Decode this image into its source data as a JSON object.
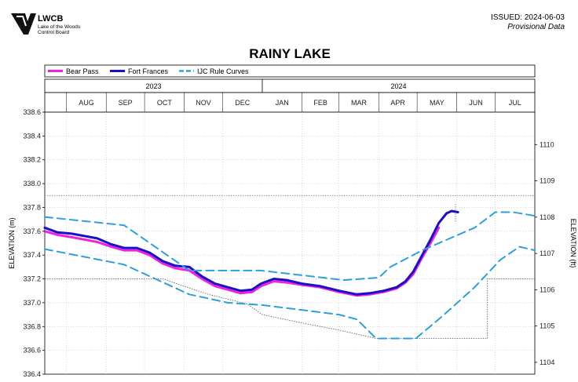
{
  "header": {
    "logo_mark": "LWCB",
    "org_name": "Lake of the Woods",
    "org_name_2": "Control Board",
    "issued": "ISSUED: 2024-06-03",
    "status": "Provisional Data"
  },
  "chart_data": {
    "type": "line",
    "title": "RAINY LAKE",
    "ylabel": "ELEVATION (m)",
    "ylabel_right": "ELEVATION (ft)",
    "ylim": [
      336.4,
      338.6
    ],
    "yticks": [
      "336.4",
      "336.6",
      "336.8",
      "337.0",
      "337.2",
      "337.4",
      "337.6",
      "337.8",
      "338.0",
      "338.2",
      "338.4",
      "338.6"
    ],
    "yticks_right": [
      "1104",
      "1105",
      "1106",
      "1107",
      "1108",
      "1109",
      "1110"
    ],
    "xlim": [
      "2023-07-15",
      "2024-08-01"
    ],
    "years": [
      {
        "label": "2023",
        "start": "2023-07-15",
        "end": "2024-01-01"
      },
      {
        "label": "2024",
        "start": "2024-01-01",
        "end": "2024-08-01"
      }
    ],
    "months": [
      {
        "label": "AUG",
        "start": "2023-08-01"
      },
      {
        "label": "SEP",
        "start": "2023-09-01"
      },
      {
        "label": "OCT",
        "start": "2023-10-01"
      },
      {
        "label": "NOV",
        "start": "2023-11-01"
      },
      {
        "label": "DEC",
        "start": "2023-12-01"
      },
      {
        "label": "JAN",
        "start": "2024-01-01"
      },
      {
        "label": "FEB",
        "start": "2024-02-01"
      },
      {
        "label": "MAR",
        "start": "2024-03-01"
      },
      {
        "label": "APR",
        "start": "2024-04-01"
      },
      {
        "label": "MAY",
        "start": "2024-05-01"
      },
      {
        "label": "JUN",
        "start": "2024-06-01"
      },
      {
        "label": "JUL",
        "start": "2024-07-01"
      }
    ],
    "legend_position": "top",
    "series": [
      {
        "name": "Bear Pass",
        "color": "#ee22dd",
        "style": "solid",
        "points": [
          [
            "2023-07-15",
            337.6
          ],
          [
            "2023-07-25",
            337.57
          ],
          [
            "2023-08-05",
            337.55
          ],
          [
            "2023-08-15",
            337.53
          ],
          [
            "2023-08-25",
            337.51
          ],
          [
            "2023-09-05",
            337.47
          ],
          [
            "2023-09-15",
            337.44
          ],
          [
            "2023-09-25",
            337.44
          ],
          [
            "2023-10-05",
            337.4
          ],
          [
            "2023-10-15",
            337.33
          ],
          [
            "2023-10-25",
            337.29
          ],
          [
            "2023-11-05",
            337.27
          ],
          [
            "2023-11-15",
            337.2
          ],
          [
            "2023-11-25",
            337.14
          ],
          [
            "2023-12-05",
            337.11
          ],
          [
            "2023-12-15",
            337.08
          ],
          [
            "2023-12-24",
            337.09
          ],
          [
            "2023-12-31",
            337.14
          ],
          [
            "2024-01-10",
            337.18
          ],
          [
            "2024-01-20",
            337.17
          ],
          [
            "2024-02-01",
            337.15
          ],
          [
            "2024-02-15",
            337.13
          ],
          [
            "2024-03-01",
            337.09
          ],
          [
            "2024-03-15",
            337.06
          ],
          [
            "2024-03-25",
            337.07
          ],
          [
            "2024-04-05",
            337.09
          ],
          [
            "2024-04-15",
            337.12
          ],
          [
            "2024-04-22",
            337.17
          ],
          [
            "2024-04-28",
            337.24
          ],
          [
            "2024-05-05",
            337.38
          ],
          [
            "2024-05-12",
            337.51
          ],
          [
            "2024-05-18",
            337.63
          ]
        ]
      },
      {
        "name": "Fort Frances",
        "color": "#1a0fc8",
        "style": "solid",
        "points": [
          [
            "2023-07-15",
            337.63
          ],
          [
            "2023-07-25",
            337.59
          ],
          [
            "2023-08-05",
            337.58
          ],
          [
            "2023-08-15",
            337.56
          ],
          [
            "2023-08-25",
            337.54
          ],
          [
            "2023-09-05",
            337.49
          ],
          [
            "2023-09-15",
            337.46
          ],
          [
            "2023-09-25",
            337.46
          ],
          [
            "2023-10-05",
            337.42
          ],
          [
            "2023-10-15",
            337.35
          ],
          [
            "2023-10-25",
            337.31
          ],
          [
            "2023-11-05",
            337.3
          ],
          [
            "2023-11-15",
            337.22
          ],
          [
            "2023-11-25",
            337.16
          ],
          [
            "2023-12-05",
            337.13
          ],
          [
            "2023-12-15",
            337.1
          ],
          [
            "2023-12-24",
            337.11
          ],
          [
            "2023-12-31",
            337.16
          ],
          [
            "2024-01-10",
            337.2
          ],
          [
            "2024-01-20",
            337.19
          ],
          [
            "2024-02-01",
            337.16
          ],
          [
            "2024-02-15",
            337.14
          ],
          [
            "2024-03-01",
            337.1
          ],
          [
            "2024-03-15",
            337.07
          ],
          [
            "2024-03-25",
            337.08
          ],
          [
            "2024-04-05",
            337.1
          ],
          [
            "2024-04-15",
            337.13
          ],
          [
            "2024-04-22",
            337.18
          ],
          [
            "2024-04-28",
            337.26
          ],
          [
            "2024-05-05",
            337.4
          ],
          [
            "2024-05-12",
            337.54
          ],
          [
            "2024-05-18",
            337.67
          ],
          [
            "2024-05-24",
            337.75
          ],
          [
            "2024-05-28",
            337.77
          ],
          [
            "2024-06-02",
            337.76
          ]
        ]
      },
      {
        "name": "IJC Rule Curves",
        "color": "#2aa0e0",
        "style": "dashed",
        "points": [
          [
            "2023-07-15",
            337.72
          ],
          [
            "2023-09-15",
            337.65
          ],
          [
            "2023-11-05",
            337.27
          ],
          [
            "2023-12-05",
            337.27
          ],
          [
            "2023-12-31",
            337.27
          ],
          [
            "2024-03-05",
            337.19
          ],
          [
            "2024-04-01",
            337.21
          ],
          [
            "2024-04-10",
            337.3
          ],
          [
            "2024-05-05",
            337.44
          ],
          [
            "2024-06-15",
            337.63
          ],
          [
            "2024-07-01",
            337.76
          ],
          [
            "2024-07-15",
            337.76
          ],
          [
            "2024-08-01",
            337.73
          ]
        ]
      },
      {
        "name": "IJC Rule Curves (lower)",
        "color": "#2aa0e0",
        "style": "dashed",
        "points": [
          [
            "2023-07-15",
            337.45
          ],
          [
            "2023-09-15",
            337.32
          ],
          [
            "2023-11-05",
            337.07
          ],
          [
            "2023-12-05",
            337.0
          ],
          [
            "2024-01-01",
            336.98
          ],
          [
            "2024-03-01",
            336.9
          ],
          [
            "2024-03-15",
            336.86
          ],
          [
            "2024-03-30",
            336.7
          ],
          [
            "2024-04-30",
            336.7
          ],
          [
            "2024-05-20",
            336.88
          ],
          [
            "2024-06-15",
            337.13
          ],
          [
            "2024-07-05",
            337.36
          ],
          [
            "2024-07-20",
            337.47
          ],
          [
            "2024-08-01",
            337.44
          ]
        ]
      }
    ],
    "reference_lines": [
      {
        "kind": "hline",
        "y": 337.9,
        "color": "#888888"
      },
      {
        "kind": "path",
        "color": "#555555",
        "points": [
          [
            "2023-07-15",
            337.2
          ],
          [
            "2023-10-15",
            337.2
          ],
          [
            "2023-11-20",
            337.07
          ],
          [
            "2023-12-20",
            336.99
          ],
          [
            "2024-01-01",
            336.9
          ],
          [
            "2024-02-01",
            336.83
          ],
          [
            "2024-03-01",
            336.77
          ],
          [
            "2024-03-30",
            336.7
          ],
          [
            "2024-06-25",
            336.7
          ],
          [
            "2024-06-25",
            337.2
          ],
          [
            "2024-08-01",
            337.2
          ]
        ]
      },
      {
        "kind": "vline",
        "x": "2024-05-31",
        "y0": 337.68,
        "y1": 337.84,
        "color": "#888888"
      }
    ]
  }
}
